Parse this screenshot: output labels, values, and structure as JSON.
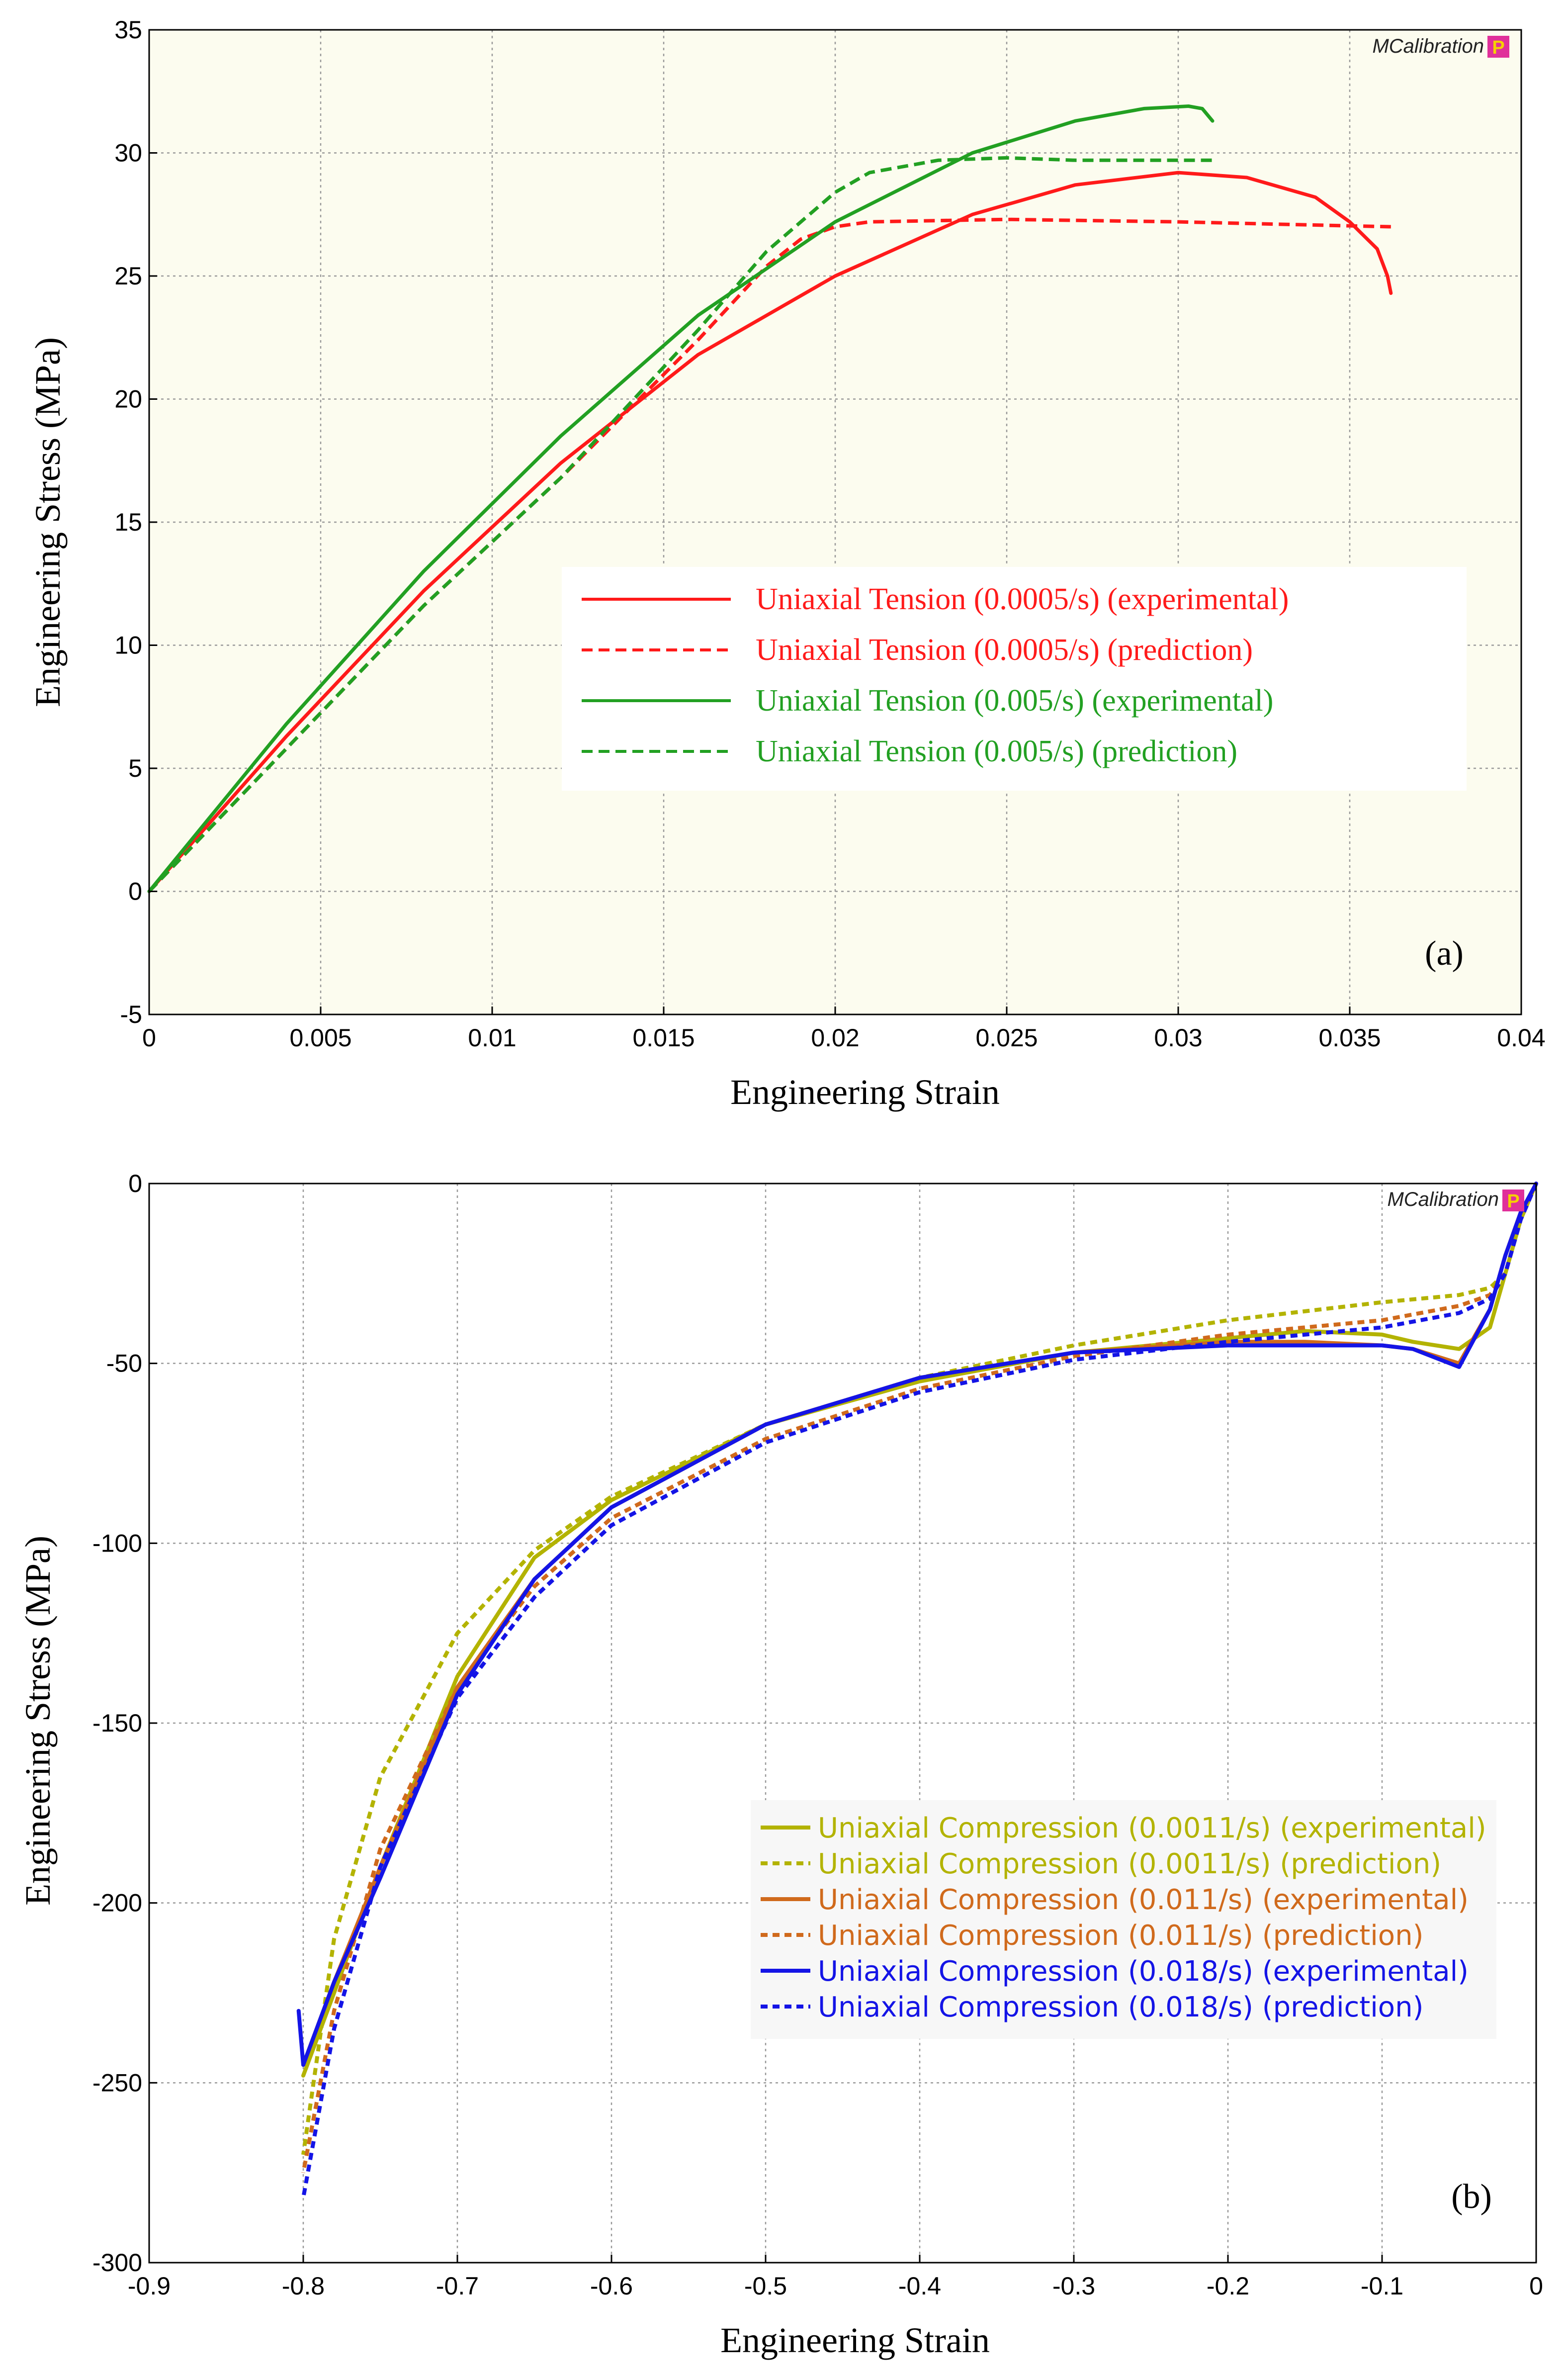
{
  "logo_text": "MCalibration",
  "logo_badge": "P",
  "chart_data": [
    {
      "type": "line",
      "panel_label": "(a)",
      "xlabel": "Engineering Strain",
      "ylabel": "Engineering Stress (MPa)",
      "xlim": [
        0,
        0.04
      ],
      "ylim": [
        -5,
        35
      ],
      "xticks": [
        0,
        0.005,
        0.01,
        0.015,
        0.02,
        0.025,
        0.03,
        0.035,
        0.04
      ],
      "xtick_labels": [
        "0",
        "0.005",
        "0.01",
        "0.015",
        "0.02",
        "0.025",
        "0.03",
        "0.035",
        "0.04"
      ],
      "yticks": [
        -5,
        0,
        5,
        10,
        15,
        20,
        25,
        30,
        35
      ],
      "ytick_labels": [
        "-5",
        "0",
        "5",
        "10",
        "15",
        "20",
        "25",
        "30",
        "35"
      ],
      "grid": true,
      "background": "#fcfcef",
      "legend_position": "center-right",
      "series": [
        {
          "name": "Uniaxial Tension (0.0005/s) (experimental)",
          "color": "#ff1a1a",
          "dash": "solid",
          "x": [
            0,
            0.004,
            0.008,
            0.012,
            0.016,
            0.02,
            0.024,
            0.027,
            0.03,
            0.032,
            0.034,
            0.035,
            0.0358,
            0.0361,
            0.0362
          ],
          "y": [
            0,
            6.3,
            12.2,
            17.4,
            21.8,
            25.0,
            27.5,
            28.7,
            29.2,
            29.0,
            28.2,
            27.2,
            26.1,
            25.0,
            24.3
          ]
        },
        {
          "name": "Uniaxial Tension (0.0005/s) (prediction)",
          "color": "#ff1a1a",
          "dash": "dashed",
          "x": [
            0,
            0.004,
            0.008,
            0.012,
            0.016,
            0.018,
            0.019,
            0.02,
            0.021,
            0.025,
            0.03,
            0.033,
            0.0362
          ],
          "y": [
            0,
            5.8,
            11.6,
            16.8,
            22.4,
            25.4,
            26.5,
            27.0,
            27.2,
            27.3,
            27.2,
            27.1,
            27.0
          ]
        },
        {
          "name": "Uniaxial Tension (0.005/s) (experimental)",
          "color": "#22a022",
          "dash": "solid",
          "x": [
            0,
            0.004,
            0.008,
            0.012,
            0.016,
            0.02,
            0.024,
            0.027,
            0.029,
            0.0303,
            0.0307,
            0.031
          ],
          "y": [
            0,
            6.8,
            13.0,
            18.5,
            23.4,
            27.2,
            30.0,
            31.3,
            31.8,
            31.9,
            31.8,
            31.3
          ]
        },
        {
          "name": "Uniaxial Tension (0.005/s) (prediction)",
          "color": "#22a022",
          "dash": "dashed",
          "x": [
            0,
            0.004,
            0.008,
            0.012,
            0.016,
            0.018,
            0.02,
            0.021,
            0.023,
            0.025,
            0.027,
            0.031
          ],
          "y": [
            0,
            5.8,
            11.6,
            16.8,
            22.8,
            26.0,
            28.4,
            29.2,
            29.7,
            29.8,
            29.7,
            29.7
          ]
        }
      ]
    },
    {
      "type": "line",
      "panel_label": "(b)",
      "xlabel": "Engineering Strain",
      "ylabel": "Engineering Stress (MPa)",
      "xlim": [
        -0.9,
        0
      ],
      "ylim": [
        -300,
        0
      ],
      "xticks": [
        -0.9,
        -0.8,
        -0.7,
        -0.6,
        -0.5,
        -0.4,
        -0.3,
        -0.2,
        -0.1,
        0
      ],
      "xtick_labels": [
        "-0.9",
        "-0.8",
        "-0.7",
        "-0.6",
        "-0.5",
        "-0.4",
        "-0.3",
        "-0.2",
        "-0.1",
        "0"
      ],
      "yticks": [
        -300,
        -250,
        -200,
        -150,
        -100,
        -50,
        0
      ],
      "ytick_labels": [
        "-300",
        "-250",
        "-200",
        "-150",
        "-100",
        "-50",
        "0"
      ],
      "grid": true,
      "background": "#ffffff",
      "legend_position": "lower-right",
      "series": [
        {
          "name": "Uniaxial Compression (0.0011/s) (experimental)",
          "color": "#b3b300",
          "dash": "solid",
          "x": [
            0,
            -0.01,
            -0.02,
            -0.03,
            -0.05,
            -0.08,
            -0.1,
            -0.15,
            -0.2,
            -0.3,
            -0.4,
            -0.5,
            -0.6,
            -0.65,
            -0.7,
            -0.75,
            -0.78,
            -0.8
          ],
          "y": [
            0,
            -10,
            -25,
            -40,
            -46,
            -44,
            -42,
            -41,
            -43,
            -47,
            -55,
            -67,
            -88,
            -104,
            -137,
            -190,
            -225,
            -248
          ]
        },
        {
          "name": "Uniaxial Compression (0.0011/s) (prediction)",
          "color": "#b3b300",
          "dash": "dotted",
          "x": [
            0,
            -0.01,
            -0.02,
            -0.03,
            -0.05,
            -0.1,
            -0.2,
            -0.3,
            -0.4,
            -0.5,
            -0.6,
            -0.65,
            -0.7,
            -0.75,
            -0.78,
            -0.8
          ],
          "y": [
            0,
            -10,
            -25,
            -29,
            -31,
            -33,
            -38,
            -45,
            -54,
            -67,
            -87,
            -102,
            -125,
            -165,
            -210,
            -270
          ]
        },
        {
          "name": "Uniaxial Compression (0.011/s) (experimental)",
          "color": "#d06a1c",
          "dash": "solid",
          "x": [
            0,
            -0.01,
            -0.02,
            -0.03,
            -0.05,
            -0.08,
            -0.1,
            -0.15,
            -0.2,
            -0.3,
            -0.4,
            -0.5,
            -0.6,
            -0.65,
            -0.7,
            -0.75,
            -0.78,
            -0.8
          ],
          "y": [
            0,
            -8,
            -20,
            -35,
            -50,
            -46,
            -45,
            -44,
            -44,
            -47,
            -54,
            -67,
            -90,
            -110,
            -140,
            -190,
            -222,
            -245
          ]
        },
        {
          "name": "Uniaxial Compression (0.011/s) (prediction)",
          "color": "#d06a1c",
          "dash": "dotted",
          "x": [
            0,
            -0.01,
            -0.02,
            -0.03,
            -0.05,
            -0.1,
            -0.2,
            -0.3,
            -0.4,
            -0.5,
            -0.6,
            -0.65,
            -0.7,
            -0.75,
            -0.78,
            -0.8
          ],
          "y": [
            0,
            -10,
            -25,
            -31,
            -34,
            -38,
            -42,
            -48,
            -57,
            -71,
            -93,
            -112,
            -140,
            -185,
            -230,
            -275
          ]
        },
        {
          "name": "Uniaxial Compression (0.018/s) (experimental)",
          "color": "#1414e6",
          "dash": "solid",
          "x": [
            0,
            -0.01,
            -0.02,
            -0.03,
            -0.05,
            -0.08,
            -0.1,
            -0.15,
            -0.2,
            -0.3,
            -0.4,
            -0.5,
            -0.6,
            -0.65,
            -0.7,
            -0.75,
            -0.78,
            -0.8,
            -0.803
          ],
          "y": [
            0,
            -8,
            -20,
            -35,
            -51,
            -46,
            -45,
            -45,
            -45,
            -47,
            -54,
            -67,
            -90,
            -110,
            -142,
            -193,
            -222,
            -245,
            -230
          ]
        },
        {
          "name": "Uniaxial Compression (0.018/s) (prediction)",
          "color": "#1414e6",
          "dash": "dotted",
          "x": [
            0,
            -0.01,
            -0.02,
            -0.03,
            -0.05,
            -0.1,
            -0.2,
            -0.3,
            -0.4,
            -0.5,
            -0.6,
            -0.65,
            -0.7,
            -0.75,
            -0.78,
            -0.8
          ],
          "y": [
            0,
            -10,
            -25,
            -32,
            -36,
            -40,
            -44,
            -49,
            -58,
            -72,
            -95,
            -115,
            -143,
            -190,
            -235,
            -282
          ]
        }
      ]
    }
  ]
}
